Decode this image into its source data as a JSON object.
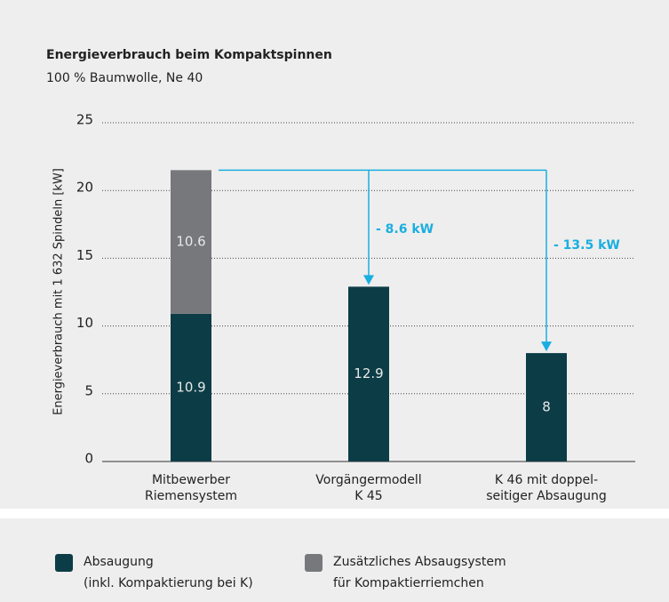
{
  "chart_data": {
    "type": "stacked_bar",
    "title": "Energieverbrauch beim Kompaktspinnen",
    "subtitle": "100 % Baumwolle, Ne 40",
    "y_label": "Energieverbrauch mit 1 632 Spindeln [kW]",
    "categories": [
      [
        "Mitbewerber",
        "Riemensystem"
      ],
      [
        "Vorgängermodell",
        "K 45"
      ],
      [
        "K 46 mit doppel-",
        "seitiger Absaugung"
      ]
    ],
    "series": [
      {
        "name": [
          "Absaugung",
          "(inkl. Kompaktierung bei K)"
        ],
        "color": "#0c3d46",
        "values": [
          10.9,
          12.9,
          8
        ]
      },
      {
        "name": [
          "Zusätzliches Absaugsystem",
          "für Kompaktierriemchen"
        ],
        "color": "#77787b",
        "values": [
          10.6,
          null,
          null
        ]
      }
    ],
    "ylim": [
      0,
      25
    ],
    "yticks": [
      0,
      5,
      10,
      15,
      20,
      25
    ],
    "grid": true,
    "annotations": [
      {
        "text": "- 8.6 kW",
        "color": "#1aaee0"
      },
      {
        "text": "- 13.5 kW",
        "color": "#1aaee0"
      }
    ]
  }
}
